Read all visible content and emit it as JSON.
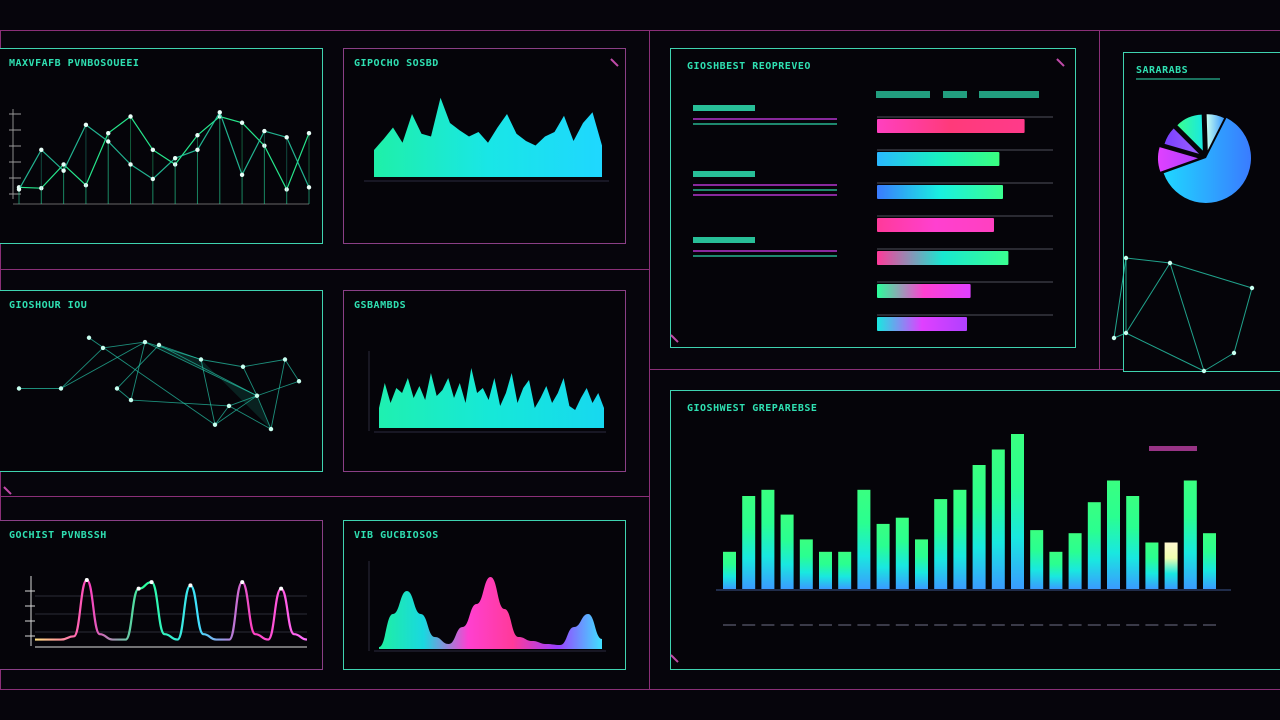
{
  "colors": {
    "background": "#06050c",
    "frame": "#8a2f78",
    "panel_border": "#3fd3b0",
    "title": "#2fe0b2",
    "cyan": "#19f0e0",
    "green": "#2aff9a",
    "magenta": "#e040ff",
    "pink": "#ff3a9a",
    "blue": "#3a7bff"
  },
  "panels": {
    "p1": {
      "title": "MAXVFAFB PVNBOSOUEEI"
    },
    "p2": {
      "title": "GIPOCHO SOSBD"
    },
    "p3": {
      "title": "GIOSHOUR IOU"
    },
    "p4": {
      "title": "GSBAMBDS"
    },
    "p5": {
      "title": "GOCHIST PVNBSSH"
    },
    "p6": {
      "title": "VIB GUCBIOSOS"
    },
    "p7": {
      "title": "GIOSHBEST REOPREVEO"
    },
    "p8": {
      "title": "SARARABS"
    },
    "p9": {
      "title": "GIOSHWEST GREPAREBSE"
    }
  },
  "chart_data": [
    {
      "type": "line",
      "panel": "p1",
      "series": [
        {
          "values": [
            40,
            38,
            95,
            45,
            170,
            210,
            130,
            95,
            165,
            210,
            195,
            140,
            35,
            170
          ]
        },
        {
          "values": [
            35,
            130,
            80,
            190,
            150,
            95,
            60,
            110,
            130,
            220,
            70,
            175,
            160,
            40
          ]
        }
      ]
    },
    {
      "type": "area",
      "panel": "p2",
      "values": [
        30,
        42,
        55,
        38,
        70,
        48,
        45,
        88,
        60,
        52,
        45,
        50,
        38,
        55,
        70,
        48,
        40,
        35,
        45,
        50,
        68,
        40,
        60,
        72,
        35
      ]
    },
    {
      "type": "scatter",
      "panel": "p3",
      "points": [
        [
          0,
          50
        ],
        [
          3,
          50
        ],
        [
          5,
          15
        ],
        [
          6,
          22
        ],
        [
          7,
          50
        ],
        [
          8,
          58
        ],
        [
          9,
          18
        ],
        [
          10,
          20
        ],
        [
          13,
          30
        ],
        [
          14,
          75
        ],
        [
          15,
          62
        ],
        [
          16,
          35
        ],
        [
          17,
          55
        ],
        [
          18,
          78
        ],
        [
          19,
          30
        ],
        [
          20,
          45
        ]
      ]
    },
    {
      "type": "area",
      "panel": "p4",
      "values": [
        20,
        45,
        25,
        40,
        35,
        50,
        30,
        42,
        28,
        55,
        32,
        38,
        50,
        30,
        45,
        25,
        60,
        35,
        40,
        28,
        50,
        22,
        35,
        55,
        25,
        40,
        48,
        20,
        30,
        42,
        25,
        35,
        50,
        22,
        18,
        30,
        40,
        25,
        35,
        20
      ]
    },
    {
      "type": "line",
      "panel": "p5",
      "series": [
        {
          "values": [
            5,
            5,
            5,
            8,
            60,
            10,
            5,
            5,
            52,
            58,
            10,
            5,
            55,
            10,
            5,
            5,
            58,
            10,
            5,
            52,
            10,
            5
          ]
        }
      ]
    },
    {
      "type": "area",
      "panel": "p6",
      "values": [
        2,
        35,
        58,
        35,
        12,
        5,
        22,
        45,
        72,
        40,
        12,
        8,
        5,
        4,
        22,
        35,
        10
      ]
    },
    {
      "type": "bar",
      "panel": "p7",
      "orientation": "horizontal",
      "values": [
        82,
        68,
        70,
        65,
        73,
        52,
        50
      ]
    },
    {
      "type": "pie",
      "panel": "p8",
      "values": [
        62,
        10,
        8,
        12,
        8
      ]
    },
    {
      "type": "bar",
      "panel": "p9",
      "values": [
        12,
        30,
        32,
        24,
        16,
        12,
        12,
        32,
        21,
        23,
        16,
        29,
        32,
        40,
        45,
        50,
        19,
        12,
        18,
        28,
        35,
        30,
        15,
        15,
        35,
        18
      ]
    }
  ]
}
